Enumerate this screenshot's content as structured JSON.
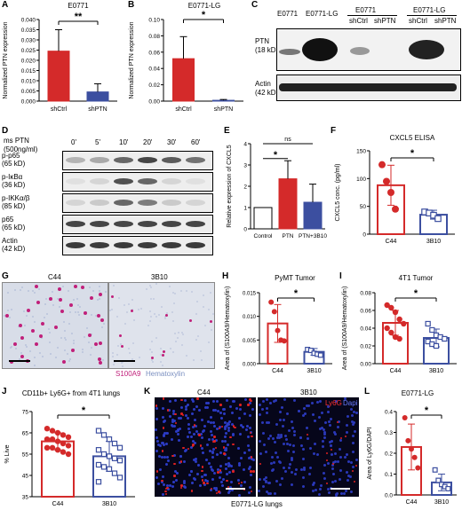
{
  "panels": {
    "A": {
      "letter": "A",
      "title": "E0771",
      "ylabel": "Normalized PTN expression",
      "ticks": [
        "0.000",
        "0.005",
        "0.010",
        "0.015",
        "0.020",
        "0.025",
        "0.030",
        "0.035",
        "0.040"
      ],
      "sig": "**"
    },
    "B": {
      "letter": "B",
      "title": "E0771-LG",
      "ylabel": "Normalized PTN expression",
      "ticks": [
        "0.00",
        "0.02",
        "0.04",
        "0.06",
        "0.08",
        "0.10"
      ],
      "sig": "*"
    },
    "C": {
      "letter": "C",
      "col_headers": [
        "E0771",
        "E0771-LG",
        "E0771",
        "E0771-LG"
      ],
      "sub_headers": [
        "shCtrl",
        "shPTN",
        "shCtrl",
        "shPTN"
      ],
      "rows": [
        {
          "name": "PTN",
          "kd": "(18 kD)"
        },
        {
          "name": "Actin",
          "kd": "(42 kD)"
        }
      ]
    },
    "D": {
      "letter": "D",
      "treatment": "ms PTN",
      "conc": "(500ng/ml)",
      "times": [
        "0'",
        "5'",
        "10'",
        "20'",
        "30'",
        "60'"
      ],
      "rows": [
        {
          "name": "p-p65",
          "kd": "(65 kD)"
        },
        {
          "name": "p-IκBα",
          "kd": "(36 kD)"
        },
        {
          "name": "p-IKKα/β",
          "kd": "(85 kD)"
        },
        {
          "name": "p65",
          "kd": "(65 kD)"
        },
        {
          "name": "Actin",
          "kd": "(42 kD)"
        }
      ]
    },
    "E": {
      "letter": "E",
      "ylabel": "Relative expression of CXCL5",
      "ticks": [
        "0",
        "1",
        "2",
        "3",
        "4"
      ],
      "sig1": "*",
      "sig2": "ns"
    },
    "F": {
      "letter": "F",
      "title": "CXCL5 ELISA",
      "ylabel": "CXCL5 conc. (pg/ml)",
      "ticks": [
        "0",
        "50",
        "100",
        "150"
      ],
      "sig": "*"
    },
    "G": {
      "letter": "G",
      "left_label": "C44",
      "right_label": "3B10",
      "legend_s100": "S100A9",
      "legend_hema": "Hematoxylin"
    },
    "H": {
      "letter": "H",
      "title": "PyMT Tumor",
      "ylabel": "Area of (S100A9/Hematoxylin)",
      "ticks": [
        "0.000",
        "0.005",
        "0.010",
        "0.015"
      ],
      "sig": "*"
    },
    "I": {
      "letter": "I",
      "title": "4T1 Tumor",
      "ylabel": "Area of (S100A9/Hematoxylin)",
      "ticks": [
        "0.00",
        "0.02",
        "0.04",
        "0.06",
        "0.08"
      ],
      "sig": "*"
    },
    "J": {
      "letter": "J",
      "title": "CD11b+ Ly6G+ from 4T1 lungs",
      "ylabel": "% Live",
      "ticks": [
        "35",
        "45",
        "55",
        "65",
        "75"
      ],
      "sig": "*"
    },
    "K": {
      "letter": "K",
      "left_label": "C44",
      "right_label": "3B10",
      "legend_ly6g": "Ly6G",
      "legend_dapi": "Dapi",
      "caption": "E0771-LG lungs"
    },
    "L": {
      "letter": "L",
      "title": "E0771-LG",
      "ylabel": "Area of Ly6G/DAPI",
      "ticks": [
        "0.0",
        "0.1",
        "0.2",
        "0.3",
        "0.4"
      ],
      "sig": "*"
    }
  },
  "colors": {
    "red": "#d42a2a",
    "blue": "#3c4fa0",
    "magenta": "#c0207a",
    "gray": "#666666"
  },
  "chart_data": [
    {
      "panel": "A",
      "type": "bar",
      "categories": [
        "shCtrl",
        "shPTN"
      ],
      "values": [
        0.0245,
        0.0045
      ],
      "errors": [
        0.0105,
        0.004
      ],
      "ylim": [
        0,
        0.04
      ],
      "title": "E0771",
      "ylabel": "Normalized PTN expression"
    },
    {
      "panel": "B",
      "type": "bar",
      "categories": [
        "shCtrl",
        "shPTN"
      ],
      "values": [
        0.052,
        0.001
      ],
      "errors": [
        0.027,
        0.001
      ],
      "ylim": [
        0,
        0.1
      ],
      "title": "E0771-LG",
      "ylabel": "Normalized PTN expression"
    },
    {
      "panel": "E",
      "type": "bar",
      "categories": [
        "Control",
        "PTN",
        "PTN+3B10"
      ],
      "values": [
        1.0,
        2.35,
        1.25
      ],
      "errors": [
        0,
        0.85,
        0.85
      ],
      "ylim": [
        0,
        4
      ],
      "ylabel": "Relative expression of CXCL5"
    },
    {
      "panel": "F",
      "type": "bar",
      "categories": [
        "C44",
        "3B10"
      ],
      "values": [
        88,
        35
      ],
      "errors": [
        36,
        8
      ],
      "points": [
        [
          125,
          95,
          75,
          45
        ],
        [
          40,
          38,
          34,
          28
        ]
      ],
      "ylim": [
        0,
        150
      ],
      "title": "CXCL5 ELISA",
      "ylabel": "CXCL5 conc. (pg/ml)"
    },
    {
      "panel": "H",
      "type": "bar",
      "categories": [
        "C44",
        "3B10"
      ],
      "values": [
        0.0085,
        0.0025
      ],
      "errors": [
        0.004,
        0.0007
      ],
      "points": [
        [
          0.013,
          0.011,
          0.007,
          0.005,
          0.0048
        ],
        [
          0.003,
          0.0028,
          0.0022,
          0.002,
          0.0018
        ]
      ],
      "ylim": [
        0,
        0.015
      ],
      "title": "PyMT Tumor",
      "ylabel": "Area of (S100A9/Hematoxylin)"
    },
    {
      "panel": "I",
      "type": "bar",
      "categories": [
        "C44",
        "3B10"
      ],
      "values": [
        0.046,
        0.029
      ],
      "errors": [
        0.014,
        0.01
      ],
      "points": [
        [
          0.066,
          0.063,
          0.058,
          0.05,
          0.045,
          0.04,
          0.035,
          0.03,
          0.028
        ],
        [
          0.045,
          0.038,
          0.032,
          0.03,
          0.028,
          0.025,
          0.022,
          0.02
        ]
      ],
      "ylim": [
        0,
        0.08
      ],
      "title": "4T1 Tumor",
      "ylabel": "Area of (S100A9/Hematoxylin)"
    },
    {
      "panel": "J",
      "type": "bar",
      "categories": [
        "C44",
        "3B10"
      ],
      "values": [
        61,
        54
      ],
      "errors": [
        4,
        7
      ],
      "points": [
        [
          67,
          66,
          65,
          64,
          63,
          62,
          62,
          61,
          60,
          59,
          58,
          58,
          57,
          56,
          55
        ],
        [
          66,
          64,
          62,
          60,
          58,
          57,
          55,
          54,
          53,
          52,
          50,
          49,
          48,
          46,
          44,
          42
        ]
      ],
      "ylim": [
        35,
        75
      ],
      "title": "CD11b+ Ly6G+ from 4T1 lungs",
      "ylabel": "% Live"
    },
    {
      "panel": "L",
      "type": "bar",
      "categories": [
        "C44",
        "3B10"
      ],
      "values": [
        0.23,
        0.06
      ],
      "errors": [
        0.11,
        0.04
      ],
      "points": [
        [
          0.37,
          0.26,
          0.22,
          0.18,
          0.13
        ],
        [
          0.12,
          0.07,
          0.05,
          0.04,
          0.03
        ]
      ],
      "ylim": [
        0,
        0.4
      ],
      "title": "E0771-LG",
      "ylabel": "Area of Ly6G/DAPI"
    }
  ]
}
